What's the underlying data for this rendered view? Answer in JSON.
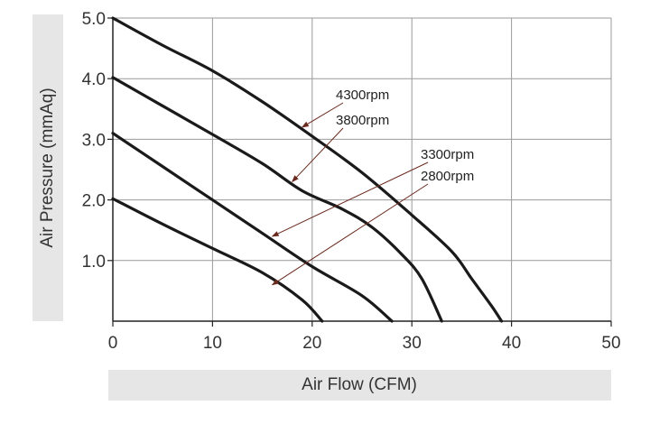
{
  "chart_data": {
    "type": "line",
    "title": "",
    "xlabel": "Air Flow (CFM)",
    "ylabel": "Air Pressure (mmAq)",
    "xlim": [
      0,
      50
    ],
    "ylim": [
      0,
      5
    ],
    "xticks": [
      {
        "value": 0,
        "label": "0"
      },
      {
        "value": 10,
        "label": "10"
      },
      {
        "value": 20,
        "label": "20"
      },
      {
        "value": 30,
        "label": "30"
      },
      {
        "value": 40,
        "label": "40"
      },
      {
        "value": 50,
        "label": "50"
      }
    ],
    "yticks": [
      {
        "value": 1,
        "label": "1.0"
      },
      {
        "value": 2,
        "label": "2.0"
      },
      {
        "value": 3,
        "label": "3.0"
      },
      {
        "value": 4,
        "label": "4.0"
      },
      {
        "value": 5,
        "label": "5.0"
      }
    ],
    "grid": true,
    "line_color": "#1a1a1a",
    "arrow_color": "#6b2a1e",
    "series": [
      {
        "name": "4300rpm",
        "annotation_at": [
          19,
          3.2
        ],
        "points": [
          [
            0,
            5.0
          ],
          [
            5,
            4.55
          ],
          [
            10,
            4.13
          ],
          [
            15,
            3.62
          ],
          [
            20,
            3.05
          ],
          [
            25,
            2.45
          ],
          [
            30,
            1.75
          ],
          [
            34,
            1.15
          ],
          [
            36,
            0.7
          ],
          [
            38,
            0.25
          ],
          [
            39,
            0.0
          ]
        ]
      },
      {
        "name": "3800rpm",
        "annotation_at": [
          18,
          2.3
        ],
        "points": [
          [
            0,
            4.02
          ],
          [
            5,
            3.55
          ],
          [
            10,
            3.08
          ],
          [
            15,
            2.6
          ],
          [
            19,
            2.15
          ],
          [
            23,
            1.85
          ],
          [
            26,
            1.55
          ],
          [
            29,
            1.1
          ],
          [
            31,
            0.7
          ],
          [
            33,
            0.0
          ]
        ]
      },
      {
        "name": "3300rpm",
        "annotation_at": [
          16,
          1.4
        ],
        "points": [
          [
            0,
            3.1
          ],
          [
            5,
            2.55
          ],
          [
            10,
            2.0
          ],
          [
            15,
            1.45
          ],
          [
            20,
            0.9
          ],
          [
            25,
            0.42
          ],
          [
            28,
            0.0
          ]
        ]
      },
      {
        "name": "2800rpm",
        "annotation_at": [
          16,
          0.6
        ],
        "points": [
          [
            0,
            2.02
          ],
          [
            5,
            1.6
          ],
          [
            10,
            1.2
          ],
          [
            15,
            0.8
          ],
          [
            19,
            0.35
          ],
          [
            21,
            0.0
          ]
        ]
      }
    ],
    "annotations": [
      {
        "text": "4300rpm",
        "series": "4300rpm"
      },
      {
        "text": "3800rpm",
        "series": "3800rpm"
      },
      {
        "text": "3300rpm",
        "series": "3300rpm"
      },
      {
        "text": "2800rpm",
        "series": "2800rpm"
      }
    ]
  }
}
